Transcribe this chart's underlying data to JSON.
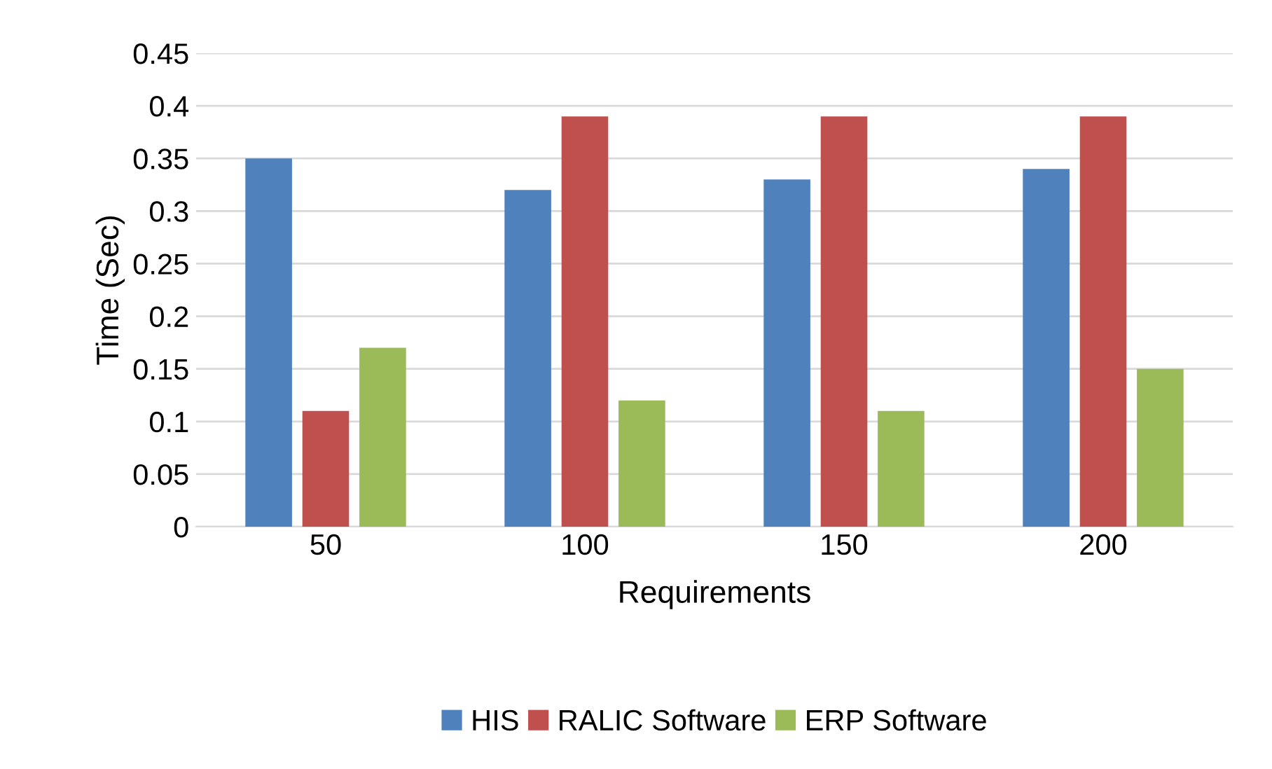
{
  "chart_data": {
    "type": "bar",
    "xlabel": "Requirements",
    "ylabel": "Time (Sec)",
    "categories": [
      "50",
      "100",
      "150",
      "200"
    ],
    "series": [
      {
        "name": "HIS",
        "color": "#4f81bd",
        "values": [
          0.35,
          0.32,
          0.33,
          0.34
        ]
      },
      {
        "name": "RALIC Software",
        "color": "#c0504d",
        "values": [
          0.11,
          0.39,
          0.39,
          0.39
        ]
      },
      {
        "name": "ERP Software",
        "color": "#9bbb59",
        "values": [
          0.17,
          0.12,
          0.11,
          0.15
        ]
      }
    ],
    "ylim": [
      0,
      0.45
    ],
    "yticks": [
      0,
      0.05,
      0.1,
      0.15,
      0.2,
      0.25,
      0.3,
      0.35,
      0.4,
      0.45
    ],
    "grid": "y",
    "legend": "bottom"
  }
}
